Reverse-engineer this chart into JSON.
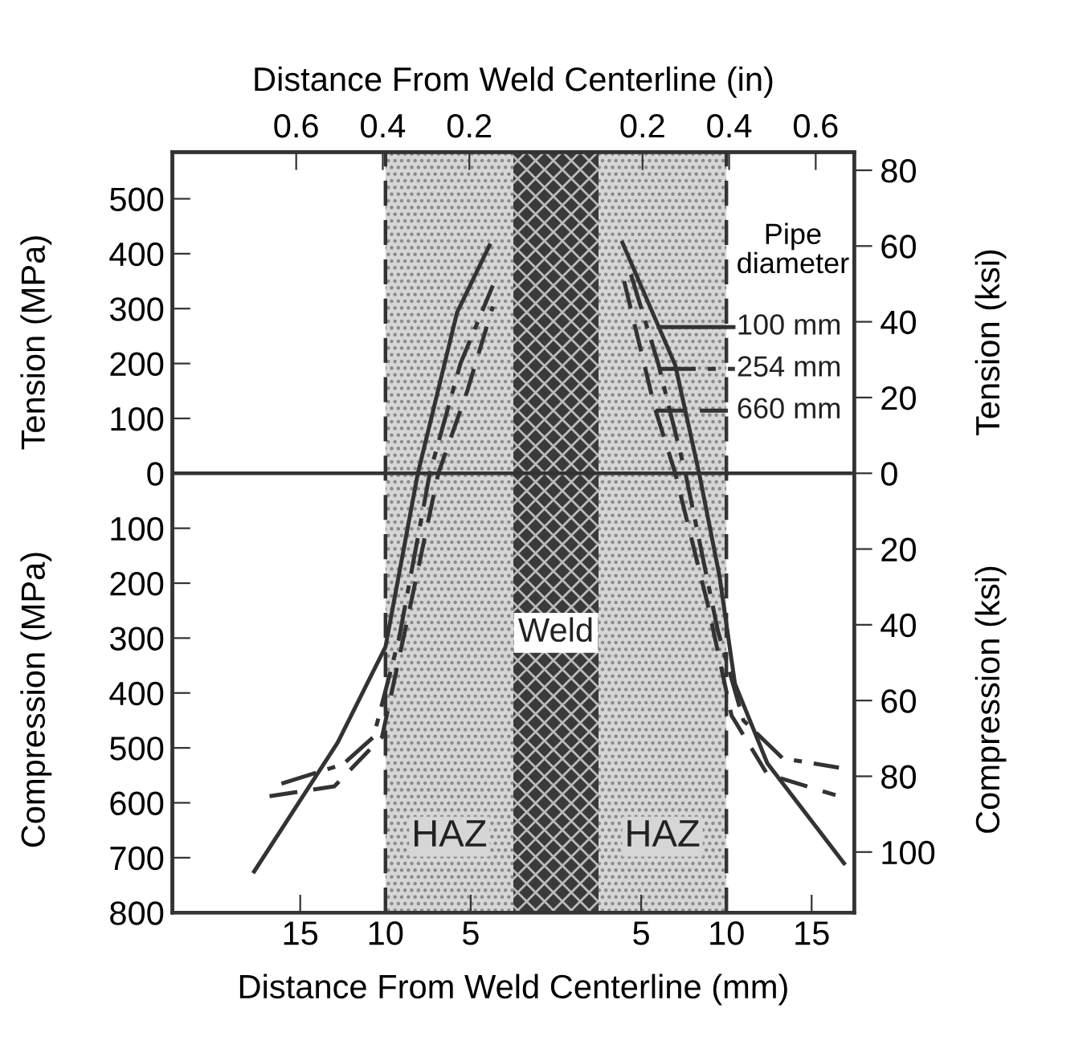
{
  "chart_data": {
    "type": "line",
    "xlabel": "Distance From Weld Centerline (mm)",
    "x2label": "Distance From Weld Centerline (in)",
    "ylabel": "Tension (MPa)",
    "y2label": "Tension (ksi)",
    "legend_title": "Pipe diameter",
    "legend": "top right",
    "annotations": [
      "Compression (MPa)",
      "Compression (ksi)"
    ],
    "xlim": [
      -22.5,
      17.5
    ],
    "xticks": [
      {
        "value": -15,
        "label": "15"
      },
      {
        "value": -10,
        "label": "10"
      },
      {
        "value": -5,
        "label": "5"
      },
      5,
      10,
      15
    ],
    "x2lim": [
      -0.886,
      0.689
    ],
    "x2ticks": [
      {
        "value": -0.6,
        "label": "0.6"
      },
      {
        "value": -0.4,
        "label": "0.4"
      },
      {
        "value": -0.2,
        "label": "0.2"
      },
      0.2,
      0.4,
      0.6
    ],
    "ylim": [
      -800,
      585
    ],
    "yticks": [
      500,
      400,
      300,
      200,
      100,
      0,
      {
        "value": -100,
        "label": "100"
      },
      {
        "value": -200,
        "label": "200"
      },
      {
        "value": -300,
        "label": "300"
      },
      {
        "value": -400,
        "label": "400"
      },
      {
        "value": -500,
        "label": "500"
      },
      {
        "value": -600,
        "label": "600"
      },
      {
        "value": -700,
        "label": "700"
      },
      {
        "value": -800,
        "label": "800"
      }
    ],
    "y2lim": [
      -116,
      84.8
    ],
    "y2ticks": [
      80,
      60,
      40,
      20,
      0,
      {
        "value": -20,
        "label": "20"
      },
      {
        "value": -40,
        "label": "40"
      },
      {
        "value": -60,
        "label": "60"
      },
      {
        "value": -80,
        "label": "80"
      },
      {
        "value": -100,
        "label": "100"
      }
    ],
    "bands": [
      {
        "axis": "x",
        "from": -10,
        "to": -2.5,
        "label": "HAZ",
        "color": "#d6d6d6"
      },
      {
        "axis": "x",
        "from": 2.5,
        "to": 10,
        "label": "HAZ",
        "color": "#d6d6d6"
      },
      {
        "axis": "x",
        "from": -2.5,
        "to": 2.5,
        "label": "Weld",
        "color": "#3a3a3a"
      }
    ],
    "ref_lines": [
      {
        "axis": "y",
        "value": 0,
        "color": "#333333",
        "line_style": "solid"
      },
      {
        "axis": "x",
        "value": -10,
        "color": "#333333",
        "line_style": "dashed"
      },
      {
        "axis": "x",
        "value": 10,
        "color": "#333333",
        "line_style": "dashed"
      }
    ],
    "series": [
      {
        "name": "100 mm",
        "color": "#333333",
        "line_style": "solid",
        "x": [
          -17.7,
          -12.8,
          -10,
          -8.1,
          -5.8,
          -3.9,
          0,
          3.9,
          7.0,
          8.4,
          9.6,
          10.5,
          12.4,
          16.9
        ],
        "values": [
          -725,
          -490,
          -316,
          0,
          293,
          415,
          null,
          420,
          197,
          0,
          -188,
          -383,
          -528,
          -710
        ]
      },
      {
        "name": "254 mm",
        "color": "#333333",
        "line_style": "dashdot",
        "x": [
          -16.1,
          -12.5,
          -10.7,
          -9.2,
          -7.4,
          -5.6,
          -3.7,
          0,
          4.4,
          6.0,
          7.6,
          9.5,
          11.0,
          13.3,
          16.6
        ],
        "values": [
          -565,
          -530,
          -480,
          -300,
          0,
          200,
          342,
          null,
          362,
          200,
          0,
          -287,
          -450,
          -519,
          -536
        ]
      },
      {
        "name": "660 mm",
        "color": "#333333",
        "line_style": "dashed",
        "x": [
          -16.8,
          -13.0,
          -10.2,
          -8.6,
          -6.9,
          -5.2,
          -3.7,
          0,
          4.0,
          5.8,
          7.0,
          8.9,
          10.3,
          12.4,
          16.4
        ],
        "values": [
          -588,
          -570,
          -480,
          -250,
          0,
          150,
          304,
          null,
          350,
          119,
          0,
          -238,
          -441,
          -548,
          -586
        ]
      }
    ]
  }
}
